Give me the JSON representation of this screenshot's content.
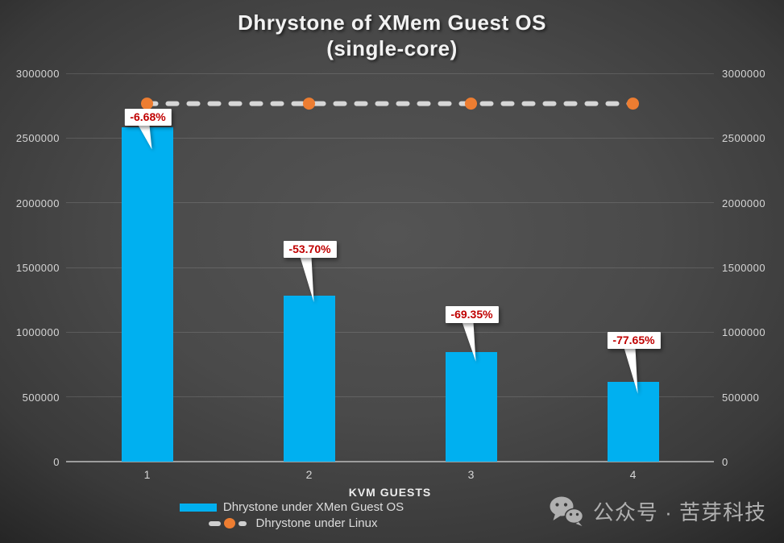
{
  "title": {
    "line1": "Dhrystone of XMem Guest OS",
    "line2": "(single-core)"
  },
  "chart_data": {
    "type": "bar",
    "title": "Dhrystone of XMem Guest OS (single-core)",
    "categories": [
      "1",
      "2",
      "3",
      "4"
    ],
    "series": [
      {
        "name": "Dhrystone under XMen Guest OS",
        "type": "bar",
        "color": "#00B0F0",
        "values": [
          2581000,
          1281000,
          848000,
          618000
        ],
        "data_labels": [
          "-6.68%",
          "-53.70%",
          "-69.35%",
          "-77.65%"
        ]
      },
      {
        "name": "Dhrystone under Linux",
        "type": "dashed-line",
        "line_color": "#d6d6d6",
        "marker_color": "#ED7D31",
        "values": [
          2766000,
          2766000,
          2766000,
          2766000
        ]
      }
    ],
    "xlabel": "KVM GUESTS",
    "ylabel": "",
    "ylim": [
      0,
      3000000
    ],
    "yticks": [
      "3000000",
      "2500000",
      "2000000",
      "1500000",
      "1000000",
      "500000",
      "0"
    ],
    "dual_y_axis": true,
    "grid": true,
    "legend_position": "bottom"
  },
  "legend": {
    "items": [
      {
        "label": "Dhrystone under XMen Guest OS",
        "swatch": "bar"
      },
      {
        "label": "Dhrystone under Linux",
        "swatch": "dashed-line-with-dot"
      }
    ]
  },
  "watermark": {
    "icon": "wechat-icon",
    "text": "公众号 · 苦芽科技"
  },
  "colors": {
    "bar": "#00B0F0",
    "line_dash": "#d6d6d6",
    "marker_orange": "#ED7D31",
    "callout_text": "#C00000",
    "callout_box": "#FFFFFF",
    "tick_text": "#D6D6D6",
    "title_text": "#F2F2F2"
  }
}
